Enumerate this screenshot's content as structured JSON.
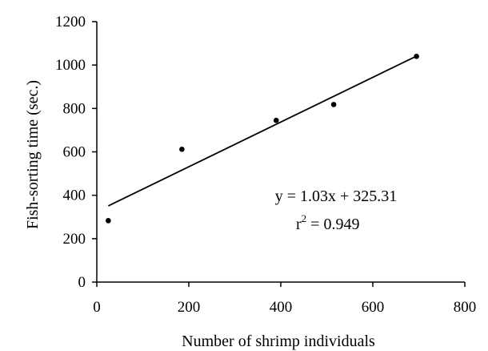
{
  "chart_data": {
    "type": "scatter",
    "title": "",
    "xlabel": "Number of shrimp individuals",
    "ylabel": "Fish-sorting time (sec.)",
    "xlim": [
      0,
      800
    ],
    "ylim": [
      0,
      1200
    ],
    "xticks": [
      0,
      200,
      400,
      600,
      800
    ],
    "yticks": [
      0,
      200,
      400,
      600,
      800,
      1000,
      1200
    ],
    "grid": false,
    "series": [
      {
        "x": [
          25,
          185,
          390,
          515,
          695
        ],
        "y": [
          283,
          612,
          745,
          818,
          1040
        ]
      }
    ],
    "trendline": {
      "slope": 1.03,
      "intercept": 325.31,
      "x_range": [
        25,
        695
      ]
    },
    "annotations": {
      "equation": "y = 1.03x + 325.31",
      "r2_base": "r",
      "r2_sup": "2",
      "r2_value": " = 0.949"
    }
  }
}
